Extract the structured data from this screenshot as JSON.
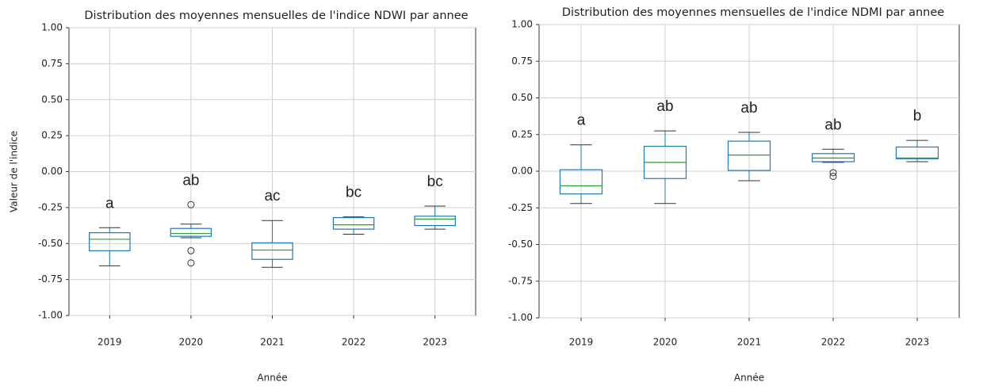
{
  "chart_data": [
    {
      "type": "box",
      "title": "Distribution des moyennes mensuelles de l'indice NDWI par annee",
      "ylabel": "Valeur de l'indice",
      "xlabel": "Année",
      "categories": [
        "2019",
        "2020",
        "2021",
        "2022",
        "2023"
      ],
      "whislo": [
        -0.655,
        -0.46,
        -0.665,
        -0.435,
        -0.4
      ],
      "q1": [
        -0.55,
        -0.45,
        -0.61,
        -0.4,
        -0.375
      ],
      "med": [
        -0.47,
        -0.43,
        -0.545,
        -0.37,
        -0.33
      ],
      "q3": [
        -0.425,
        -0.395,
        -0.495,
        -0.32,
        -0.31
      ],
      "whishi": [
        -0.39,
        -0.365,
        -0.34,
        -0.315,
        -0.24
      ],
      "fliers": [
        [],
        [
          -0.23,
          -0.55,
          -0.635
        ],
        [],
        [],
        []
      ],
      "annotations": [
        "a",
        "ab",
        "ac",
        "bc",
        "bc"
      ],
      "ylim": [
        -1,
        1
      ],
      "yticks": [
        {
          "value": -1,
          "label": "-1.00"
        },
        {
          "value": -0.75,
          "label": "-0.75"
        },
        {
          "value": -0.5,
          "label": "-0.50"
        },
        {
          "value": -0.25,
          "label": "-0.25"
        },
        {
          "value": 0,
          "label": "0.00"
        },
        {
          "value": 0.25,
          "label": "0.25"
        },
        {
          "value": 0.5,
          "label": "0.50"
        },
        {
          "value": 0.75,
          "label": "0.75"
        },
        {
          "value": 1,
          "label": "1.00"
        }
      ],
      "grid": true,
      "box_color": "#1f77b4",
      "median_color": "#2ca02c"
    },
    {
      "type": "box",
      "title": "Distribution des moyennes mensuelles de l'indice NDMI par annee",
      "xlabel": "Année",
      "categories": [
        "2019",
        "2020",
        "2021",
        "2022",
        "2023"
      ],
      "whislo": [
        -0.22,
        -0.22,
        -0.065,
        0.06,
        0.065
      ],
      "q1": [
        -0.155,
        -0.05,
        0.005,
        0.065,
        0.085
      ],
      "med": [
        -0.1,
        0.06,
        0.11,
        0.09,
        0.09
      ],
      "q3": [
        0.01,
        0.17,
        0.205,
        0.12,
        0.165
      ],
      "whishi": [
        0.18,
        0.275,
        0.265,
        0.15,
        0.21
      ],
      "fliers": [
        [],
        [],
        [],
        [
          -0.01,
          -0.035
        ],
        []
      ],
      "annotations": [
        "a",
        "ab",
        "ab",
        "ab",
        "b"
      ],
      "ylim": [
        -1,
        1
      ],
      "yticks": [
        {
          "value": -1,
          "label": "-1.00"
        },
        {
          "value": -0.75,
          "label": "-0.75"
        },
        {
          "value": -0.5,
          "label": "-0.50"
        },
        {
          "value": -0.25,
          "label": "-0.25"
        },
        {
          "value": 0,
          "label": "0.00"
        },
        {
          "value": 0.25,
          "label": "0.25"
        },
        {
          "value": 0.5,
          "label": "0.50"
        },
        {
          "value": 0.75,
          "label": "0.75"
        },
        {
          "value": 1,
          "label": "1.00"
        }
      ],
      "grid": true,
      "box_color": "#1f77b4",
      "median_color": "#2ca02c"
    }
  ]
}
